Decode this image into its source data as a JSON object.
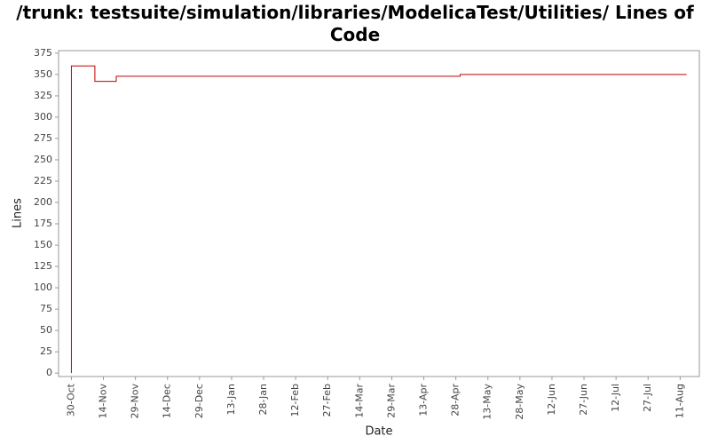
{
  "chart_data": {
    "type": "step",
    "title": "/trunk: testsuite/simulation/libraries/ModelicaTest/Utilities/ Lines of Code",
    "x_label": "Date",
    "y_label": "Lines",
    "x": [
      "30-Oct",
      "30-Oct",
      "10-Nov",
      "20-Nov",
      "30-Apr",
      "14-Aug"
    ],
    "series": [
      {
        "name": "Lines",
        "color": "#c00000",
        "values": [
          0,
          360,
          342,
          348,
          350,
          350
        ]
      }
    ],
    "xlim": [
      "24-Oct",
      "20-Aug"
    ],
    "xticks": [
      "30-Oct",
      "14-Nov",
      "29-Nov",
      "14-Dec",
      "29-Dec",
      "13-Jan",
      "28-Jan",
      "12-Feb",
      "27-Feb",
      "14-Mar",
      "29-Mar",
      "13-Apr",
      "28-Apr",
      "13-May",
      "28-May",
      "12-Jun",
      "27-Jun",
      "12-Jul",
      "27-Jul",
      "11-Aug"
    ],
    "ylim": [
      -4,
      378
    ],
    "yticks": [
      0,
      25,
      50,
      75,
      100,
      125,
      150,
      175,
      200,
      225,
      250,
      275,
      300,
      325,
      350,
      375
    ],
    "grid": false
  }
}
